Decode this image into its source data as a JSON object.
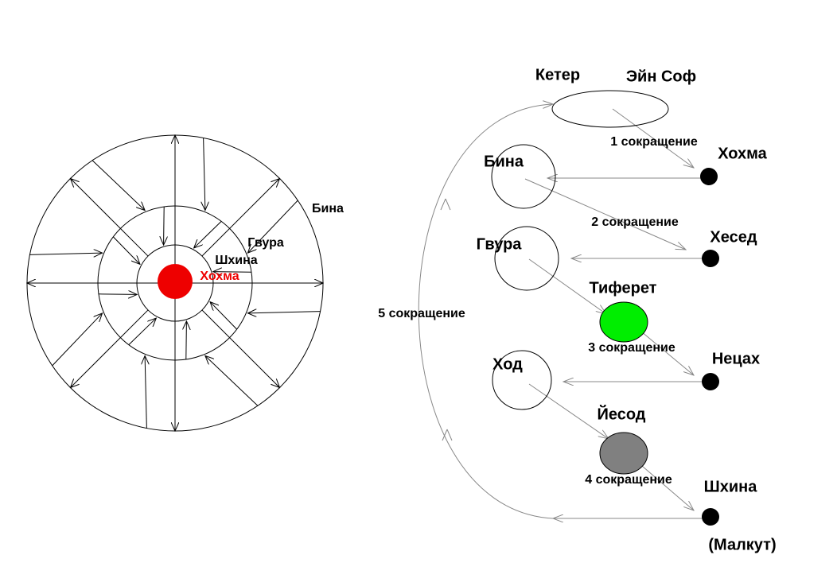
{
  "left": {
    "labels": [
      "Бина",
      "Гвура",
      "Шхина",
      "Хохма"
    ]
  },
  "right": {
    "nodes": [
      "Кетер",
      "Эйн Соф",
      "Хохма",
      "Бина",
      "Хесед",
      "Гвура",
      "Тиферет",
      "Нецах",
      "Ход",
      "Йесод",
      "Шхина",
      "(Малкут)"
    ],
    "steps": [
      "1 сокращение",
      "2 сокращение",
      "3 сокращение",
      "4 сокращение",
      "5 сокращение"
    ]
  }
}
